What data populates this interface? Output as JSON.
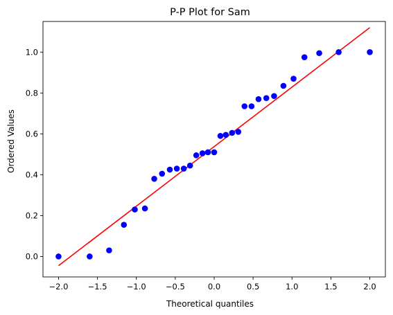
{
  "chart_data": {
    "type": "scatter",
    "title": "P-P Plot for Sam",
    "xlabel": "Theoretical quantiles",
    "ylabel": "Ordered Values",
    "xlim": [
      -2.2,
      2.2
    ],
    "ylim": [
      -0.1,
      1.15
    ],
    "xticks": [
      -2.0,
      -1.5,
      -1.0,
      -0.5,
      0.0,
      0.5,
      1.0,
      1.5,
      2.0
    ],
    "xtick_labels": [
      "−2.0",
      "−1.5",
      "−1.0",
      "−0.5",
      "0.0",
      "0.5",
      "1.0",
      "1.5",
      "2.0"
    ],
    "yticks": [
      0.0,
      0.2,
      0.4,
      0.6,
      0.8,
      1.0
    ],
    "ytick_labels": [
      "0.0",
      "0.2",
      "0.4",
      "0.6",
      "0.8",
      "1.0"
    ],
    "grid": false,
    "points": {
      "color": "#0000ff",
      "x": [
        -2.0,
        -1.6,
        -1.35,
        -1.16,
        -1.02,
        -0.89,
        -0.77,
        -0.67,
        -0.57,
        -0.48,
        -0.39,
        -0.31,
        -0.23,
        -0.15,
        -0.08,
        0.0,
        0.08,
        0.15,
        0.23,
        0.31,
        0.39,
        0.48,
        0.57,
        0.67,
        0.77,
        0.89,
        1.02,
        1.16,
        1.35,
        1.6,
        2.0
      ],
      "y": [
        0.0,
        0.0,
        0.03,
        0.155,
        0.23,
        0.235,
        0.38,
        0.405,
        0.425,
        0.43,
        0.43,
        0.445,
        0.495,
        0.505,
        0.51,
        0.51,
        0.59,
        0.595,
        0.605,
        0.61,
        0.735,
        0.735,
        0.77,
        0.775,
        0.785,
        0.835,
        0.87,
        0.975,
        0.995,
        1.0,
        1.0
      ]
    },
    "fit_line": {
      "color": "#ff0000",
      "x": [
        -2.0,
        2.0
      ],
      "y": [
        -0.045,
        1.12
      ]
    }
  }
}
